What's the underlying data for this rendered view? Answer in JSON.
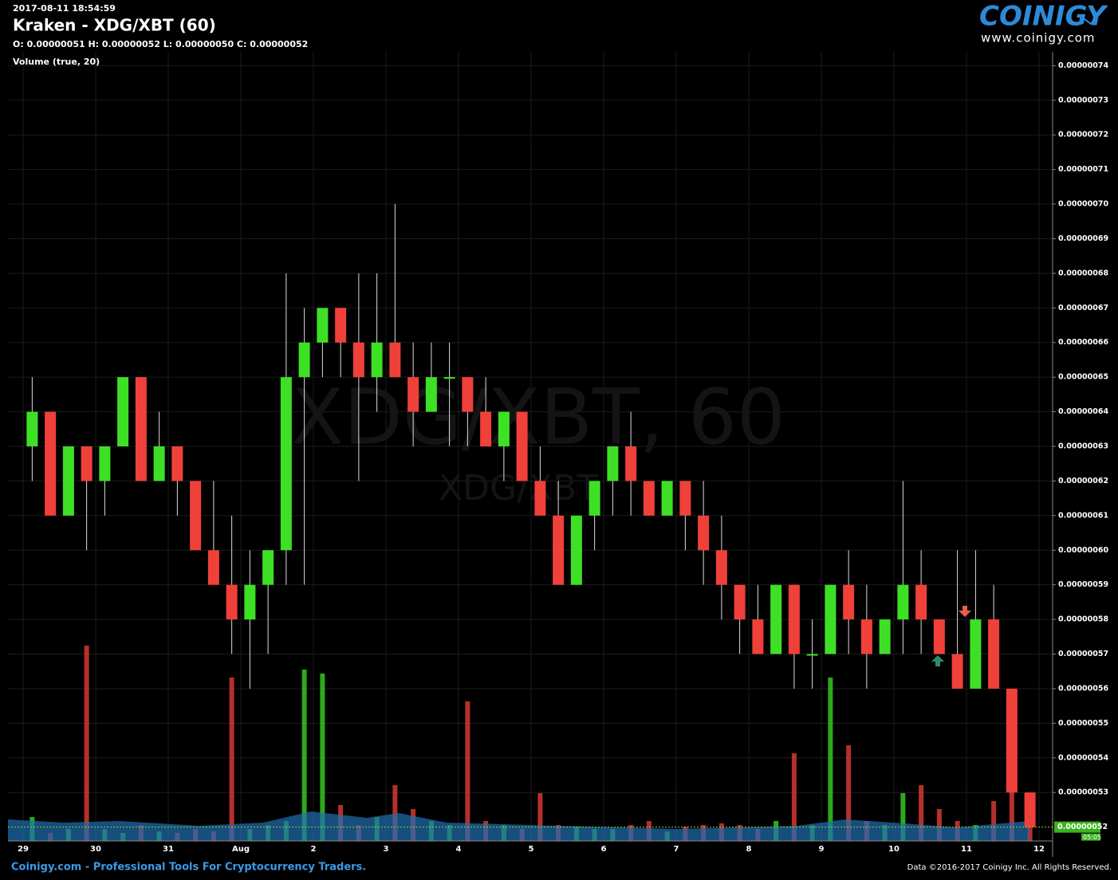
{
  "header": {
    "timestamp": "2017-08-11 18:54:59",
    "title": "Kraken - XDG/XBT (60)",
    "ohlc": "O: 0.00000051 H: 0.00000052 L: 0.00000050 C: 0.00000052",
    "indicator": "Volume (true, 20)"
  },
  "watermark": {
    "big": "XDG/XBT, 60",
    "small": "XDG/XBT"
  },
  "logo": {
    "name": "COINIGY",
    "url": "www.coinigy.com"
  },
  "footer": {
    "left": "Coinigy.com - Professional Tools For Cryptocurrency Traders.",
    "right": "Data ©2016-2017 Coinigy Inc. All Rights Reserved."
  },
  "chart_data": {
    "type": "candlestick",
    "up_color": "#3ee025",
    "down_color": "#f0403a",
    "grid": true,
    "categories": [
      "29",
      null,
      null,
      null,
      "30",
      null,
      null,
      null,
      "31",
      null,
      null,
      null,
      "Aug",
      null,
      null,
      null,
      "2",
      null,
      null,
      null,
      "3",
      null,
      null,
      null,
      "4",
      null,
      null,
      null,
      "5",
      null,
      null,
      null,
      "6",
      null,
      null,
      null,
      "7",
      null,
      null,
      null,
      "8",
      null,
      null,
      null,
      "9",
      null,
      null,
      null,
      "10",
      null,
      null,
      null,
      "11",
      null,
      null,
      null,
      "12"
    ],
    "open": [
      6.3e-07,
      6.4e-07,
      6.1e-07,
      6.3e-07,
      6.2e-07,
      6.3e-07,
      6.5e-07,
      6.2e-07,
      6.3e-07,
      6.2e-07,
      6e-07,
      5.9e-07,
      5.8e-07,
      5.9e-07,
      6e-07,
      6.5e-07,
      6.6e-07,
      6.7e-07,
      6.6e-07,
      6.5e-07,
      6.6e-07,
      6.5e-07,
      6.4e-07,
      6.5e-07,
      6.5e-07,
      6.4e-07,
      6.3e-07,
      6.4e-07,
      6.2e-07,
      6.1e-07,
      5.9e-07,
      6.1e-07,
      6.2e-07,
      6.3e-07,
      6.2e-07,
      6.1e-07,
      6.2e-07,
      6.1e-07,
      6e-07,
      5.9e-07,
      5.8e-07,
      5.7e-07,
      5.9e-07,
      5.7e-07,
      5.7e-07,
      5.9e-07,
      5.8e-07,
      5.7e-07,
      5.8e-07,
      5.9e-07,
      5.8e-07,
      5.7e-07,
      5.6e-07,
      5.8e-07,
      5.6e-07,
      5.3e-07,
      null
    ],
    "high": [
      6.5e-07,
      6.4e-07,
      6.3e-07,
      6.3e-07,
      6.3e-07,
      6.5e-07,
      6.5e-07,
      6.4e-07,
      6.3e-07,
      6.2e-07,
      6.2e-07,
      6.1e-07,
      6e-07,
      6e-07,
      6.8e-07,
      6.7e-07,
      6.7e-07,
      6.7e-07,
      6.8e-07,
      6.8e-07,
      7e-07,
      6.6e-07,
      6.6e-07,
      6.6e-07,
      6.5e-07,
      6.5e-07,
      6.4e-07,
      6.4e-07,
      6.3e-07,
      6.2e-07,
      6.1e-07,
      6.2e-07,
      6.3e-07,
      6.4e-07,
      6.2e-07,
      6.2e-07,
      6.2e-07,
      6.2e-07,
      6.1e-07,
      5.9e-07,
      5.9e-07,
      5.9e-07,
      5.9e-07,
      5.8e-07,
      5.9e-07,
      6e-07,
      5.9e-07,
      5.8e-07,
      6.2e-07,
      6e-07,
      5.8e-07,
      6e-07,
      6e-07,
      5.9e-07,
      5.6e-07,
      5.3e-07,
      null
    ],
    "low": [
      6.2e-07,
      6.1e-07,
      6.1e-07,
      6e-07,
      6.1e-07,
      6.3e-07,
      6.2e-07,
      6.2e-07,
      6.1e-07,
      6e-07,
      5.9e-07,
      5.7e-07,
      5.6e-07,
      5.7e-07,
      5.9e-07,
      5.9e-07,
      6.5e-07,
      6.5e-07,
      6.2e-07,
      6.4e-07,
      6.5e-07,
      6.3e-07,
      6.4e-07,
      6.3e-07,
      6.3e-07,
      6.3e-07,
      6.2e-07,
      6.2e-07,
      6.1e-07,
      5.9e-07,
      5.9e-07,
      6e-07,
      6.1e-07,
      6.1e-07,
      6.1e-07,
      6.1e-07,
      6e-07,
      5.9e-07,
      5.8e-07,
      5.7e-07,
      5.7e-07,
      5.7e-07,
      5.6e-07,
      5.6e-07,
      5.7e-07,
      5.7e-07,
      5.6e-07,
      5.7e-07,
      5.7e-07,
      5.7e-07,
      5.7e-07,
      5.6e-07,
      5.6e-07,
      5.6e-07,
      5.3e-07,
      5.2e-07,
      null
    ],
    "close": [
      6.4e-07,
      6.1e-07,
      6.3e-07,
      6.2e-07,
      6.3e-07,
      6.5e-07,
      6.2e-07,
      6.3e-07,
      6.2e-07,
      6e-07,
      5.9e-07,
      5.8e-07,
      5.9e-07,
      6e-07,
      6.5e-07,
      6.6e-07,
      6.7e-07,
      6.6e-07,
      6.5e-07,
      6.6e-07,
      6.5e-07,
      6.4e-07,
      6.5e-07,
      6.5e-07,
      6.4e-07,
      6.3e-07,
      6.4e-07,
      6.2e-07,
      6.1e-07,
      5.9e-07,
      6.1e-07,
      6.2e-07,
      6.3e-07,
      6.2e-07,
      6.1e-07,
      6.2e-07,
      6.1e-07,
      6e-07,
      5.9e-07,
      5.8e-07,
      5.7e-07,
      5.9e-07,
      5.7e-07,
      5.7e-07,
      5.9e-07,
      5.8e-07,
      5.7e-07,
      5.8e-07,
      5.9e-07,
      5.8e-07,
      5.7e-07,
      5.6e-07,
      5.8e-07,
      5.6e-07,
      5.3e-07,
      5.2e-07,
      null
    ],
    "volume": [
      30,
      10,
      15,
      245,
      15,
      10,
      20,
      12,
      10,
      15,
      12,
      205,
      15,
      20,
      25,
      215,
      210,
      45,
      20,
      30,
      70,
      40,
      25,
      20,
      175,
      25,
      20,
      15,
      60,
      20,
      18,
      15,
      15,
      20,
      25,
      12,
      18,
      20,
      22,
      20,
      15,
      25,
      110,
      20,
      205,
      120,
      25,
      20,
      60,
      70,
      40,
      25,
      20,
      50,
      85,
      30,
      null
    ],
    "ylim": [
      5.16e-07,
      7.44e-07
    ],
    "yticks": [
      {
        "value": 5.3e-07,
        "label": "0.00000053"
      },
      {
        "value": 5.4e-07,
        "label": "0.00000054"
      },
      {
        "value": 5.5e-07,
        "label": "0.00000055"
      },
      {
        "value": 5.6e-07,
        "label": "0.00000056"
      },
      {
        "value": 5.7e-07,
        "label": "0.00000057"
      },
      {
        "value": 5.8e-07,
        "label": "0.00000058"
      },
      {
        "value": 5.9e-07,
        "label": "0.00000059"
      },
      {
        "value": 6e-07,
        "label": "0.00000060"
      },
      {
        "value": 6.1e-07,
        "label": "0.00000061"
      },
      {
        "value": 6.2e-07,
        "label": "0.00000062"
      },
      {
        "value": 6.3e-07,
        "label": "0.00000063"
      },
      {
        "value": 6.4e-07,
        "label": "0.00000064"
      },
      {
        "value": 6.5e-07,
        "label": "0.00000065"
      },
      {
        "value": 6.6e-07,
        "label": "0.00000066"
      },
      {
        "value": 6.7e-07,
        "label": "0.00000067"
      },
      {
        "value": 6.8e-07,
        "label": "0.00000068"
      },
      {
        "value": 6.9e-07,
        "label": "0.00000069"
      },
      {
        "value": 7e-07,
        "label": "0.00000070"
      },
      {
        "value": 7.1e-07,
        "label": "0.00000071"
      },
      {
        "value": 7.2e-07,
        "label": "0.00000072"
      },
      {
        "value": 7.3e-07,
        "label": "0.00000073"
      },
      {
        "value": 7.4e-07,
        "label": "0.00000074"
      }
    ],
    "price_marker": {
      "value": 5.2e-07,
      "label": "0.00000052",
      "timer": "05:05"
    }
  }
}
